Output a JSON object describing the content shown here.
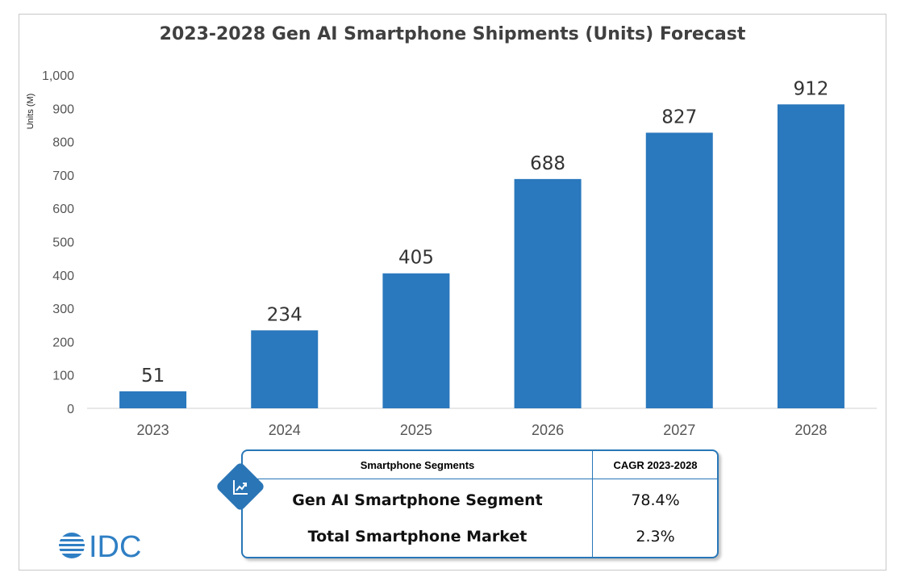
{
  "chart_data": {
    "type": "bar",
    "title": "2023-2028 Gen AI Smartphone Shipments (Units) Forecast",
    "ylabel": "Units (M)",
    "xlabel": "",
    "categories": [
      "2023",
      "2024",
      "2025",
      "2026",
      "2027",
      "2028"
    ],
    "values": [
      51,
      234,
      405,
      688,
      827,
      912
    ],
    "ylim": [
      0,
      1000
    ],
    "yticks": [
      "0",
      "100",
      "200",
      "300",
      "400",
      "500",
      "600",
      "700",
      "800",
      "900",
      "1,000"
    ],
    "bar_color": "#2a78bd",
    "grid": false
  },
  "table": {
    "headers": [
      "Smartphone Segments",
      "CAGR 2023-2028"
    ],
    "rows": [
      {
        "name": "Gen AI Smartphone Segment",
        "value": "78.4%"
      },
      {
        "name": "Total Smartphone Market",
        "value": "2.3%"
      }
    ],
    "accent": "#2877b7"
  },
  "icons": {
    "table_badge": "trend-chart-icon",
    "logo": "idc-logo"
  },
  "logo_text": "IDC"
}
